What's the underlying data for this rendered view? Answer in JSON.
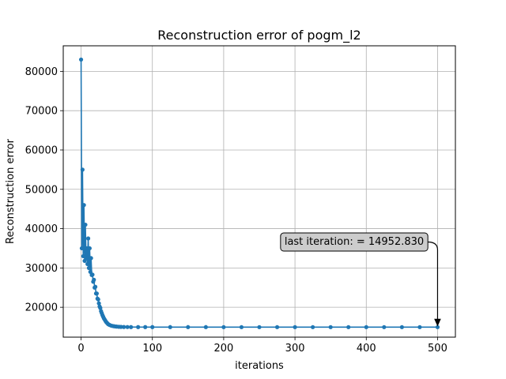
{
  "chart_data": {
    "type": "line",
    "title": "Reconstruction error of pogm_l2",
    "xlabel": "iterations",
    "ylabel": "Reconstruction error",
    "xlim": [
      -25,
      525
    ],
    "ylim": [
      12400,
      86500
    ],
    "xticks": [
      0,
      100,
      200,
      300,
      400,
      500
    ],
    "yticks": [
      20000,
      30000,
      40000,
      50000,
      60000,
      70000,
      80000
    ],
    "grid": true,
    "marker": "circle",
    "colors": {
      "series": "#1f77b4",
      "annotation_box": "#cccccc"
    },
    "annotation": {
      "text": "last iteration: = 14952.830",
      "x": 500,
      "y": 14952.83
    },
    "series": [
      {
        "x": [
          0,
          1,
          2,
          3,
          4,
          5,
          6,
          7,
          8,
          9,
          10,
          11,
          12,
          13,
          14,
          15,
          16,
          17,
          18,
          19,
          20,
          21,
          22,
          23,
          24,
          25,
          26,
          27,
          28,
          29,
          30,
          31,
          32,
          33,
          34,
          35,
          36,
          37,
          38,
          39,
          40,
          42,
          44,
          46,
          48,
          50,
          53,
          56,
          60,
          65,
          70,
          80,
          90,
          100,
          125,
          150,
          175,
          200,
          225,
          250,
          275,
          300,
          325,
          350,
          375,
          400,
          425,
          450,
          475,
          500
        ],
        "y": [
          83000,
          35000,
          55000,
          33000,
          46000,
          31800,
          41000,
          32500,
          35000,
          31000,
          37500,
          30000,
          35000,
          29000,
          32500,
          28200,
          28300,
          26500,
          27000,
          25000,
          25200,
          23500,
          23500,
          22200,
          22000,
          21000,
          20200,
          19800,
          19000,
          18500,
          18000,
          17600,
          17200,
          16900,
          16600,
          16300,
          16100,
          15900,
          15700,
          15600,
          15500,
          15350,
          15250,
          15180,
          15120,
          15080,
          15040,
          15010,
          14990,
          14975,
          14965,
          14960,
          14958,
          14956,
          14955,
          14954,
          14954,
          14953,
          14953,
          14953,
          14953,
          14953,
          14953,
          14953,
          14953,
          14953,
          14953,
          14953,
          14953,
          14952.83
        ]
      }
    ]
  }
}
